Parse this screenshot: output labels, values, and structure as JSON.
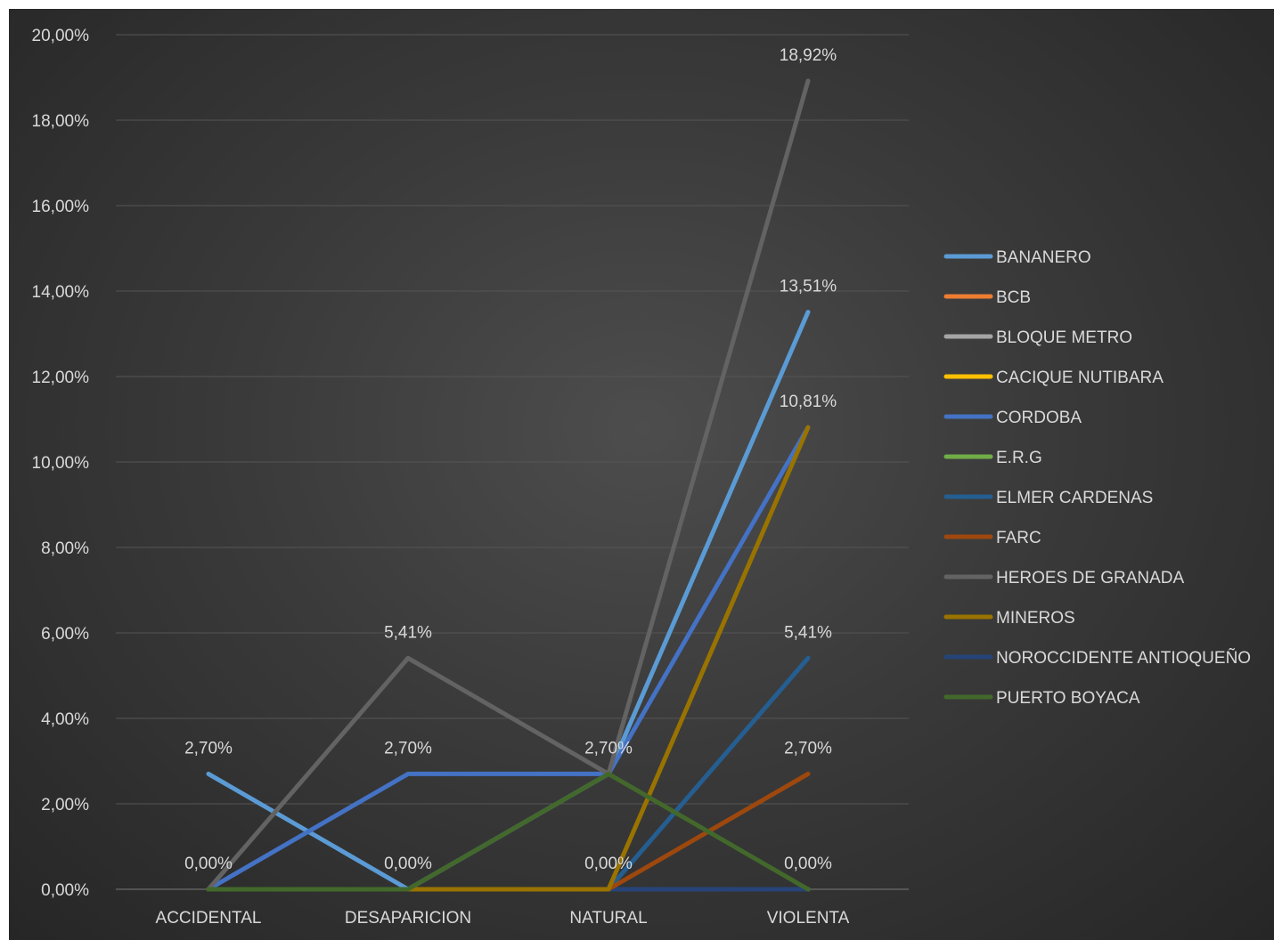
{
  "chart_data": {
    "type": "line",
    "categories": [
      "ACCIDENTAL",
      "DESAPARICION",
      "NATURAL",
      "VIOLENTA"
    ],
    "ylim": [
      0,
      20
    ],
    "yticks": [
      0,
      2,
      4,
      6,
      8,
      10,
      12,
      14,
      16,
      18,
      20
    ],
    "ytick_labels": [
      "0,00%",
      "2,00%",
      "4,00%",
      "6,00%",
      "8,00%",
      "10,00%",
      "12,00%",
      "14,00%",
      "16,00%",
      "18,00%",
      "20,00%"
    ],
    "grid": true,
    "legend_position": "right",
    "series": [
      {
        "name": "BANANERO",
        "color": "#5b9bd5",
        "values": [
          2.7,
          0,
          2.7,
          13.51
        ]
      },
      {
        "name": "BCB",
        "color": "#ed7d31",
        "values": [
          0,
          0,
          0,
          0
        ]
      },
      {
        "name": "BLOQUE METRO",
        "color": "#a5a5a5",
        "values": [
          0,
          0,
          0,
          0
        ]
      },
      {
        "name": "CACIQUE NUTIBARA",
        "color": "#ffc000",
        "values": [
          0,
          0,
          0,
          0
        ]
      },
      {
        "name": "CORDOBA",
        "color": "#4472c4",
        "values": [
          0,
          2.7,
          2.7,
          10.81
        ]
      },
      {
        "name": "E.R.G",
        "color": "#70ad47",
        "values": [
          0,
          0,
          0,
          0
        ]
      },
      {
        "name": "ELMER CARDENAS",
        "color": "#255e91",
        "values": [
          0,
          0,
          0,
          5.41
        ]
      },
      {
        "name": "FARC",
        "color": "#9e480e",
        "values": [
          0,
          0,
          0,
          2.7
        ]
      },
      {
        "name": "HEROES DE GRANADA",
        "color": "#636363",
        "values": [
          0,
          5.41,
          2.7,
          18.92
        ]
      },
      {
        "name": "MINEROS",
        "color": "#997300",
        "values": [
          0,
          0,
          0,
          10.81
        ]
      },
      {
        "name": "NOROCCIDENTE ANTIOQUEÑO",
        "color": "#264478",
        "values": [
          0,
          0,
          0,
          0
        ]
      },
      {
        "name": "PUERTO BOYACA",
        "color": "#43682b",
        "values": [
          0,
          0,
          2.7,
          0
        ]
      }
    ],
    "data_labels": [
      {
        "category": 0,
        "value": 2.7,
        "text": "2,70%"
      },
      {
        "category": 0,
        "value": 0,
        "text": "0,00%"
      },
      {
        "category": 1,
        "value": 5.41,
        "text": "5,41%"
      },
      {
        "category": 1,
        "value": 2.7,
        "text": "2,70%"
      },
      {
        "category": 1,
        "value": 0,
        "text": "0,00%"
      },
      {
        "category": 2,
        "value": 2.7,
        "text": "2,70%"
      },
      {
        "category": 2,
        "value": 0,
        "text": "0,00%"
      },
      {
        "category": 3,
        "value": 18.92,
        "text": "18,92%"
      },
      {
        "category": 3,
        "value": 13.51,
        "text": "13,51%"
      },
      {
        "category": 3,
        "value": 10.81,
        "text": "10,81%"
      },
      {
        "category": 3,
        "value": 5.41,
        "text": "5,41%"
      },
      {
        "category": 3,
        "value": 2.7,
        "text": "2,70%"
      },
      {
        "category": 3,
        "value": 0,
        "text": "0,00%"
      }
    ]
  }
}
